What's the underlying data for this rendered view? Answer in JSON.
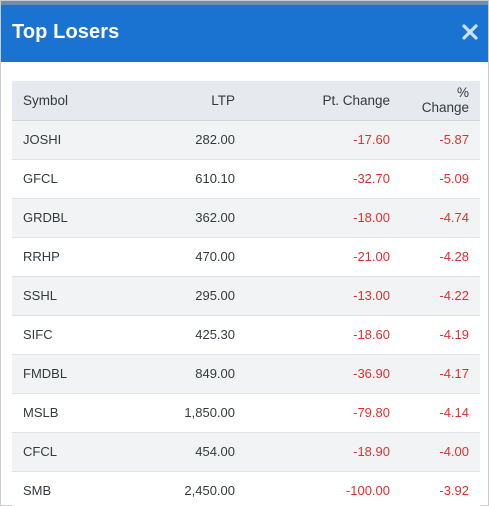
{
  "header": {
    "title": "Top Losers",
    "close_icon": "close-icon"
  },
  "colors": {
    "header_bg": "#1a73d1",
    "negative": "#e0302e",
    "table_header_bg": "#e6e9ed"
  },
  "table": {
    "columns": [
      "Symbol",
      "LTP",
      "Pt. Change",
      "% Change"
    ],
    "rows": [
      {
        "symbol": "JOSHI",
        "ltp": "282.00",
        "pt_change": "-17.60",
        "pct_change": "-5.87"
      },
      {
        "symbol": "GFCL",
        "ltp": "610.10",
        "pt_change": "-32.70",
        "pct_change": "-5.09"
      },
      {
        "symbol": "GRDBL",
        "ltp": "362.00",
        "pt_change": "-18.00",
        "pct_change": "-4.74"
      },
      {
        "symbol": "RRHP",
        "ltp": "470.00",
        "pt_change": "-21.00",
        "pct_change": "-4.28"
      },
      {
        "symbol": "SSHL",
        "ltp": "295.00",
        "pt_change": "-13.00",
        "pct_change": "-4.22"
      },
      {
        "symbol": "SIFC",
        "ltp": "425.30",
        "pt_change": "-18.60",
        "pct_change": "-4.19"
      },
      {
        "symbol": "FMDBL",
        "ltp": "849.00",
        "pt_change": "-36.90",
        "pct_change": "-4.17"
      },
      {
        "symbol": "MSLB",
        "ltp": "1,850.00",
        "pt_change": "-79.80",
        "pct_change": "-4.14"
      },
      {
        "symbol": "CFCL",
        "ltp": "454.00",
        "pt_change": "-18.90",
        "pct_change": "-4.00"
      },
      {
        "symbol": "SMB",
        "ltp": "2,450.00",
        "pt_change": "-100.00",
        "pct_change": "-3.92"
      }
    ]
  }
}
